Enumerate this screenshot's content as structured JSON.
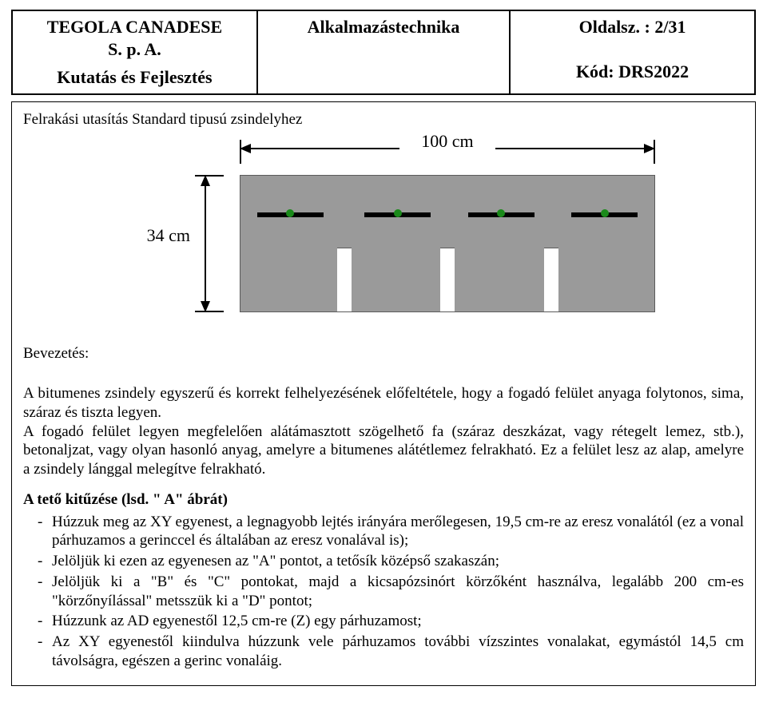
{
  "header": {
    "company_line1": "TEGOLA CANADESE",
    "company_line2": "S. p. A.",
    "department": "Kutatás és Fejlesztés",
    "middle_title": "Alkalmazástechnika",
    "page_label": "Oldalsz. : 2/31",
    "code_label": "Kód: DRS2022"
  },
  "content": {
    "title": "Felrakási utasítás Standard tipusú zsindelyhez",
    "diagram": {
      "width_label": "100 cm",
      "height_label": "34 cm",
      "shingle_color": "#9a9a9a",
      "nail_dot_color": "#1a8a1a"
    },
    "intro_heading": "Bevezetés:",
    "intro_paragraph": "A bitumenes zsindely egyszerű és korrekt felhelyezésének előfeltétele, hogy a fogadó felület anyaga folytonos, sima, száraz és tiszta legyen.\nA fogadó felület legyen megfelelően alátámasztott szögelhető fa (száraz deszkázat, vagy rétegelt lemez, stb.), betonaljzat, vagy olyan hasonló anyag, amelyre a bitumenes alátétlemez felrakható. Ez a felület lesz az alap, amelyre a zsindely lánggal melegítve felrakható.",
    "section_heading": "A tető kitűzése (lsd. \" A\" ábrát)",
    "bullets": [
      "Húzzuk meg az XY egyenest, a legnagyobb lejtés irányára merőlegesen, 19,5 cm-re az eresz vonalától (ez a vonal párhuzamos a gerinccel és általában az eresz vonalával is);",
      "Jelöljük ki ezen az egyenesen az \"A\" pontot, a tetősík középső szakaszán;",
      "Jelöljük ki a \"B\" és \"C\" pontokat, majd a kicsapózsinórt körzőként használva, legalább 200 cm-es \"körzőnyílással\" metsszük ki a \"D\" pontot;",
      "Húzzunk  az AD egyenestől 12,5 cm-re (Z) egy párhuzamost;",
      "Az XY egyenestől kiindulva húzzunk vele párhuzamos további vízszintes vonalakat, egymástól 14,5 cm távolságra, egészen a gerinc vonaláig."
    ]
  }
}
